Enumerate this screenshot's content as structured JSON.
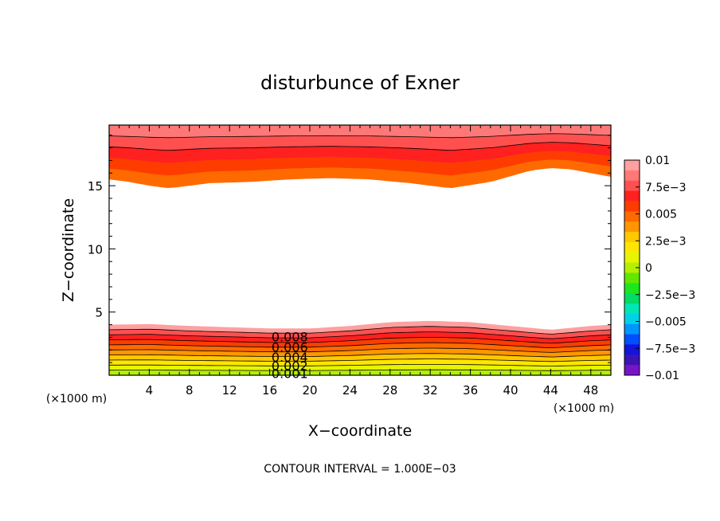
{
  "chart_data": {
    "type": "contour",
    "title": "disturbunce of Exner",
    "xlabel": "X−coordinate",
    "ylabel": "Z−coordinate",
    "x_unit_left": "(×1000 m)",
    "x_unit_right": "(×1000 m)",
    "xlim": [
      0,
      50
    ],
    "ylim": [
      0,
      19.8
    ],
    "x_ticks": [
      4,
      8,
      12,
      16,
      20,
      24,
      28,
      32,
      36,
      40,
      44,
      48
    ],
    "x_tick_labels": [
      "4",
      "8",
      "12",
      "16",
      "20",
      "24",
      "28",
      "32",
      "36",
      "40",
      "44",
      "48"
    ],
    "y_ticks": [
      5,
      10,
      15
    ],
    "y_tick_labels": [
      "5",
      "10",
      "15"
    ],
    "footer": "CONTOUR INTERVAL = 1.000E−03",
    "contour_interval": 0.001,
    "contour_labels": [
      "0.008",
      "0.006",
      "0.004",
      "0.002",
      "0.001"
    ],
    "colorbar": {
      "min": -0.01,
      "max": 0.01,
      "tick_labels": [
        "0.01",
        "7.5e−3",
        "0.005",
        "2.5e−3",
        "0",
        "−2.5e−3",
        "−0.005",
        "−7.5e−3",
        "−0.01"
      ],
      "colors_top_to_bottom": [
        "#ffa0a0",
        "#ff7878",
        "#ff5050",
        "#ff2020",
        "#ff3c00",
        "#ff6a00",
        "#ff9600",
        "#ffc800",
        "#ffe600",
        "#e6f500",
        "#b4f000",
        "#64e600",
        "#1ee61e",
        "#00dc64",
        "#00e6b4",
        "#00d2e6",
        "#0096ff",
        "#0050ff",
        "#1414dc",
        "#3c14b4",
        "#7814c8"
      ]
    },
    "upper_band": {
      "x": [
        0,
        2,
        4,
        6,
        8,
        10,
        14,
        18,
        22,
        26,
        30,
        34,
        38,
        42,
        44,
        46,
        48,
        50
      ],
      "lower_edge": [
        15.5,
        15.3,
        15.0,
        14.8,
        15.0,
        15.2,
        15.3,
        15.5,
        15.6,
        15.5,
        15.2,
        14.8,
        15.3,
        16.2,
        16.4,
        16.3,
        16.0,
        15.7
      ],
      "levels": [
        0.005,
        0.006,
        0.007,
        0.008,
        0.009
      ]
    },
    "lower_band": {
      "x": [
        0,
        4,
        8,
        12,
        16,
        20,
        24,
        28,
        32,
        36,
        40,
        44,
        48,
        50
      ],
      "upper_edge": [
        4.0,
        4.05,
        3.9,
        3.8,
        3.7,
        3.7,
        3.9,
        4.2,
        4.3,
        4.2,
        3.9,
        3.6,
        3.9,
        4.0
      ],
      "levels": [
        0.009,
        0.008,
        0.007,
        0.006,
        0.005,
        0.004,
        0.003,
        0.002,
        0.001,
        0.0
      ]
    }
  }
}
